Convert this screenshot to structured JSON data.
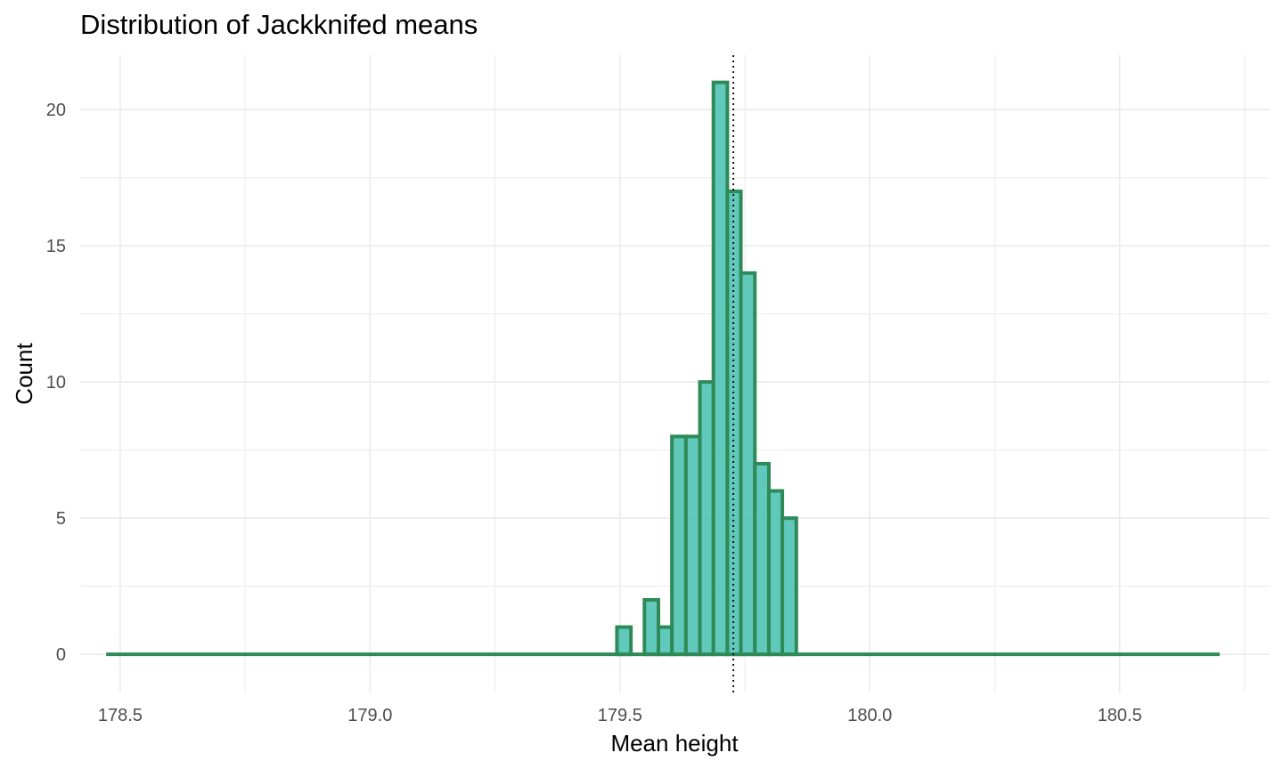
{
  "chart_data": {
    "type": "bar",
    "title": "Distribution of Jackknifed means",
    "xlabel": "Mean height",
    "ylabel": "Count",
    "xlim": [
      178.42,
      180.8
    ],
    "ylim": [
      -1.4,
      22
    ],
    "x_ticks": [
      178.5,
      179.0,
      179.5,
      180.0,
      180.5
    ],
    "x_tick_labels": [
      "178.5",
      "179.0",
      "179.5",
      "180.0",
      "180.5"
    ],
    "y_ticks": [
      0,
      5,
      10,
      15,
      20
    ],
    "y_tick_labels": [
      "0",
      "5",
      "10",
      "15",
      "20"
    ],
    "grid": true,
    "histogram_range": [
      178.472,
      180.7
    ],
    "bin_width": 0.0276,
    "bins": [
      {
        "left": 179.494,
        "right": 179.522,
        "count": 1
      },
      {
        "left": 179.522,
        "right": 179.549,
        "count": 0
      },
      {
        "left": 179.549,
        "right": 179.577,
        "count": 2
      },
      {
        "left": 179.577,
        "right": 179.604,
        "count": 1
      },
      {
        "left": 179.604,
        "right": 179.632,
        "count": 8
      },
      {
        "left": 179.632,
        "right": 179.66,
        "count": 8
      },
      {
        "left": 179.66,
        "right": 179.687,
        "count": 10
      },
      {
        "left": 179.687,
        "right": 179.715,
        "count": 21
      },
      {
        "left": 179.715,
        "right": 179.742,
        "count": 17
      },
      {
        "left": 179.742,
        "right": 179.77,
        "count": 14
      },
      {
        "left": 179.77,
        "right": 179.798,
        "count": 7
      },
      {
        "left": 179.798,
        "right": 179.825,
        "count": 6
      },
      {
        "left": 179.825,
        "right": 179.853,
        "count": 5
      }
    ],
    "reference_line": {
      "x": 179.727,
      "style": "dotted"
    },
    "colors": {
      "fill": "#4fc3b5",
      "outline": "#2e8b57",
      "reference_line": "#000000",
      "grid": "#ebebeb"
    }
  }
}
